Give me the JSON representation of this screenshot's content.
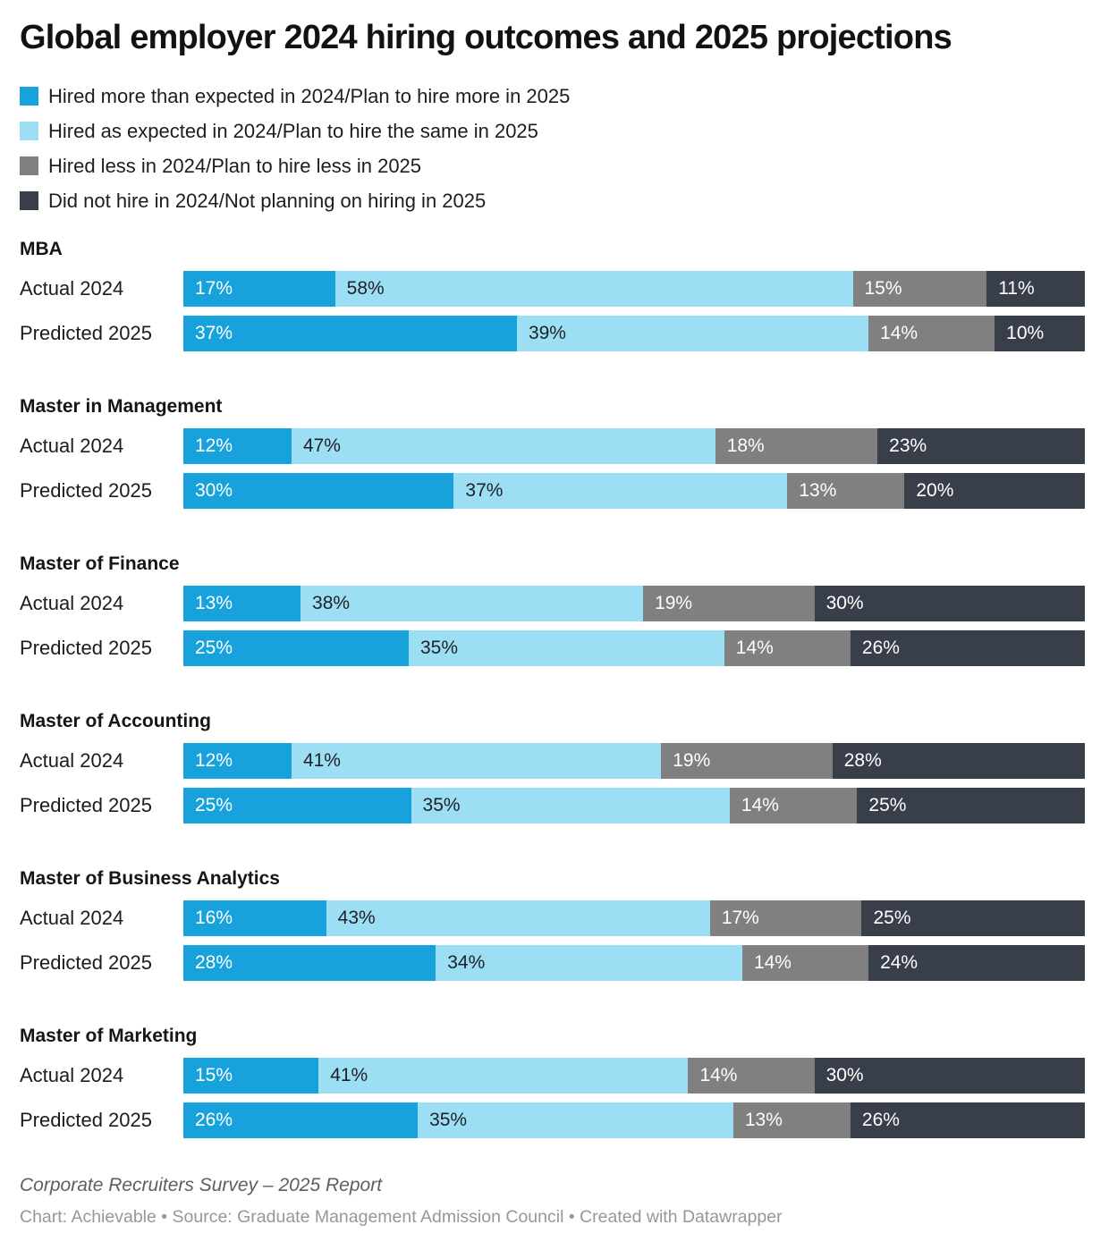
{
  "title": "Global employer 2024 hiring outcomes and 2025 projections",
  "legend": {
    "items": [
      {
        "label": "Hired more than expected in 2024/Plan to hire more in 2025",
        "color": "#17a2dc",
        "text_color": "#ffffff"
      },
      {
        "label": "Hired as expected in 2024/Plan to hire the same in 2025",
        "color": "#9cdff5",
        "text_color": "#1f2024"
      },
      {
        "label": "Hired less in 2024/Plan to hire less in 2025",
        "color": "#808080",
        "text_color": "#ffffff"
      },
      {
        "label": "Did not hire in 2024/Not planning on hiring in 2025",
        "color": "#383e4a",
        "text_color": "#ffffff"
      }
    ]
  },
  "chart_data": {
    "type": "bar",
    "variant": "horizontal-stacked-normalized",
    "value_suffix": "%",
    "legend_position": "top-left",
    "series_names": [
      "Hired more than expected in 2024/Plan to hire more in 2025",
      "Hired as expected in 2024/Plan to hire the same in 2025",
      "Hired less in 2024/Plan to hire less in 2025",
      "Did not hire in 2024/Not planning on hiring in 2025"
    ],
    "row_labels": [
      "Actual 2024",
      "Predicted 2025"
    ],
    "groups": [
      {
        "name": "MBA",
        "rows": [
          {
            "label": "Actual 2024",
            "values": [
              17,
              58,
              15,
              11
            ]
          },
          {
            "label": "Predicted 2025",
            "values": [
              37,
              39,
              14,
              10
            ]
          }
        ]
      },
      {
        "name": "Master in Management",
        "rows": [
          {
            "label": "Actual 2024",
            "values": [
              12,
              47,
              18,
              23
            ]
          },
          {
            "label": "Predicted 2025",
            "values": [
              30,
              37,
              13,
              20
            ]
          }
        ]
      },
      {
        "name": "Master of Finance",
        "rows": [
          {
            "label": "Actual 2024",
            "values": [
              13,
              38,
              19,
              30
            ]
          },
          {
            "label": "Predicted 2025",
            "values": [
              25,
              35,
              14,
              26
            ]
          }
        ]
      },
      {
        "name": "Master of Accounting",
        "rows": [
          {
            "label": "Actual 2024",
            "values": [
              12,
              41,
              19,
              28
            ]
          },
          {
            "label": "Predicted 2025",
            "values": [
              25,
              35,
              14,
              25
            ]
          }
        ]
      },
      {
        "name": "Master of Business Analytics",
        "rows": [
          {
            "label": "Actual 2024",
            "values": [
              16,
              43,
              17,
              25
            ]
          },
          {
            "label": "Predicted 2025",
            "values": [
              28,
              34,
              14,
              24
            ]
          }
        ]
      },
      {
        "name": "Master of Marketing",
        "rows": [
          {
            "label": "Actual 2024",
            "values": [
              15,
              41,
              14,
              30
            ]
          },
          {
            "label": "Predicted 2025",
            "values": [
              26,
              35,
              13,
              26
            ]
          }
        ]
      }
    ]
  },
  "footer": {
    "note": "Corporate Recruiters Survey – 2025 Report",
    "byline": "Chart: Achievable • Source: Graduate Management Admission Council • Created with Datawrapper"
  }
}
